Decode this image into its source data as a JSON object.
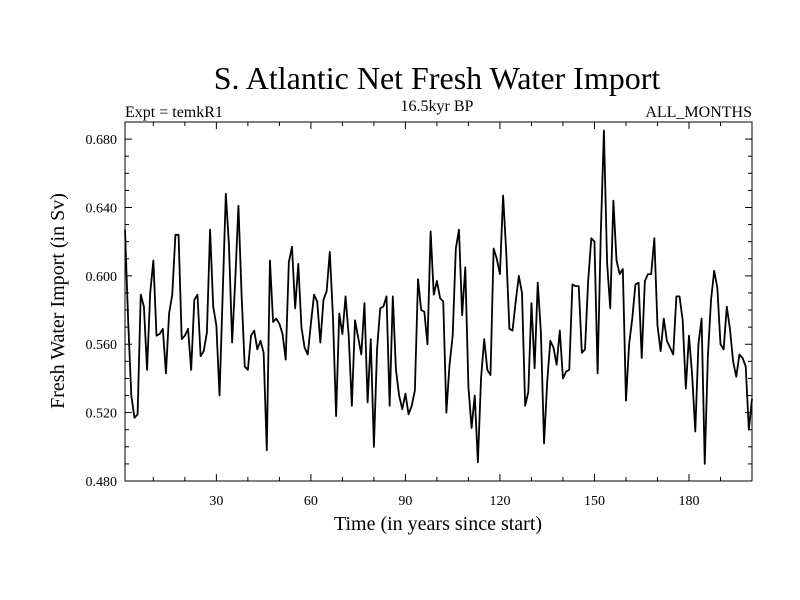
{
  "chart_data": {
    "type": "line",
    "title": "S. Atlantic Net Fresh Water Import",
    "subtitle_left": "Expt = temkR1",
    "subtitle_center": "16.5kyr BP",
    "subtitle_right": "ALL_MONTHS",
    "xlabel": "Time (in years since start)",
    "ylabel": "Fresh Water Import (in Sv)",
    "xlim": [
      1,
      200
    ],
    "ylim": [
      0.48,
      0.69
    ],
    "x_ticks": [
      30,
      60,
      90,
      120,
      150,
      180
    ],
    "x_tick_labels": [
      "30",
      "60",
      "90",
      "120",
      "150",
      "180"
    ],
    "y_ticks": [
      0.48,
      0.52,
      0.56,
      0.6,
      0.64,
      0.68
    ],
    "y_tick_labels": [
      "0.480",
      "0.520",
      "0.560",
      "0.600",
      "0.640",
      "0.680"
    ],
    "grid": false,
    "line_color": "#000000",
    "series": [
      {
        "name": "Fresh Water Import",
        "x_start": 1,
        "x_step": 1,
        "values": [
          0.627,
          0.574,
          0.53,
          0.517,
          0.519,
          0.589,
          0.582,
          0.545,
          0.59,
          0.609,
          0.565,
          0.566,
          0.569,
          0.543,
          0.578,
          0.589,
          0.624,
          0.624,
          0.563,
          0.565,
          0.569,
          0.545,
          0.586,
          0.589,
          0.553,
          0.556,
          0.567,
          0.627,
          0.582,
          0.571,
          0.53,
          0.589,
          0.648,
          0.618,
          0.561,
          0.598,
          0.641,
          0.589,
          0.547,
          0.545,
          0.565,
          0.568,
          0.557,
          0.562,
          0.555,
          0.498,
          0.609,
          0.573,
          0.575,
          0.572,
          0.566,
          0.551,
          0.608,
          0.617,
          0.581,
          0.607,
          0.57,
          0.558,
          0.554,
          0.572,
          0.589,
          0.585,
          0.561,
          0.586,
          0.591,
          0.614,
          0.576,
          0.518,
          0.578,
          0.566,
          0.588,
          0.565,
          0.524,
          0.574,
          0.564,
          0.554,
          0.584,
          0.526,
          0.563,
          0.5,
          0.557,
          0.581,
          0.582,
          0.588,
          0.524,
          0.588,
          0.545,
          0.53,
          0.522,
          0.531,
          0.519,
          0.524,
          0.533,
          0.598,
          0.58,
          0.579,
          0.56,
          0.626,
          0.589,
          0.597,
          0.587,
          0.585,
          0.52,
          0.548,
          0.565,
          0.616,
          0.627,
          0.577,
          0.605,
          0.535,
          0.511,
          0.53,
          0.491,
          0.54,
          0.563,
          0.545,
          0.542,
          0.616,
          0.61,
          0.601,
          0.647,
          0.614,
          0.569,
          0.568,
          0.585,
          0.6,
          0.59,
          0.524,
          0.532,
          0.584,
          0.546,
          0.596,
          0.567,
          0.502,
          0.538,
          0.562,
          0.558,
          0.548,
          0.568,
          0.54,
          0.544,
          0.545,
          0.595,
          0.594,
          0.594,
          0.555,
          0.557,
          0.597,
          0.622,
          0.62,
          0.543,
          0.624,
          0.685,
          0.608,
          0.581,
          0.644,
          0.609,
          0.601,
          0.604,
          0.527,
          0.56,
          0.575,
          0.595,
          0.596,
          0.552,
          0.597,
          0.601,
          0.601,
          0.622,
          0.571,
          0.556,
          0.575,
          0.562,
          0.558,
          0.554,
          0.588,
          0.588,
          0.574,
          0.534,
          0.565,
          0.542,
          0.509,
          0.56,
          0.575,
          0.49,
          0.553,
          0.586,
          0.603,
          0.593,
          0.56,
          0.557,
          0.582,
          0.569,
          0.55,
          0.541,
          0.554,
          0.552,
          0.547,
          0.51,
          0.528
        ]
      }
    ]
  }
}
